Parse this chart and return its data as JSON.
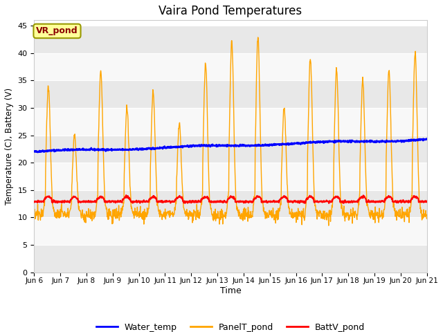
{
  "title": "Vaira Pond Temperatures",
  "xlabel": "Time",
  "ylabel": "Temperature (C), Battery (V)",
  "ylim": [
    0,
    46
  ],
  "yticks": [
    0,
    5,
    10,
    15,
    20,
    25,
    30,
    35,
    40,
    45
  ],
  "x_labels": [
    "Jun 6",
    "Jun 7",
    "Jun 8",
    "Jun 9",
    "Jun 10",
    "Jun 11",
    "Jun 12",
    "Jun 13",
    "Jun 14",
    "Jun 15",
    "Jun 16",
    "Jun 17",
    "Jun 18",
    "Jun 19",
    "Jun 20",
    "Jun 21"
  ],
  "annotation_text": "VR_pond",
  "annotation_color": "#8B0000",
  "annotation_bg": "#FFFF99",
  "annotation_edge": "#999900",
  "line_colors": {
    "Water_temp": "#0000FF",
    "PanelT_pond": "#FFA500",
    "BattV_pond": "#FF0000"
  },
  "legend_labels": [
    "Water_temp",
    "PanelT_pond",
    "BattV_pond"
  ],
  "bg_color": "#F0F0F0",
  "band_colors": [
    "#E8E8E8",
    "#F8F8F8"
  ],
  "spine_color": "#CCCCCC",
  "figsize": [
    6.4,
    4.8
  ],
  "dpi": 100
}
